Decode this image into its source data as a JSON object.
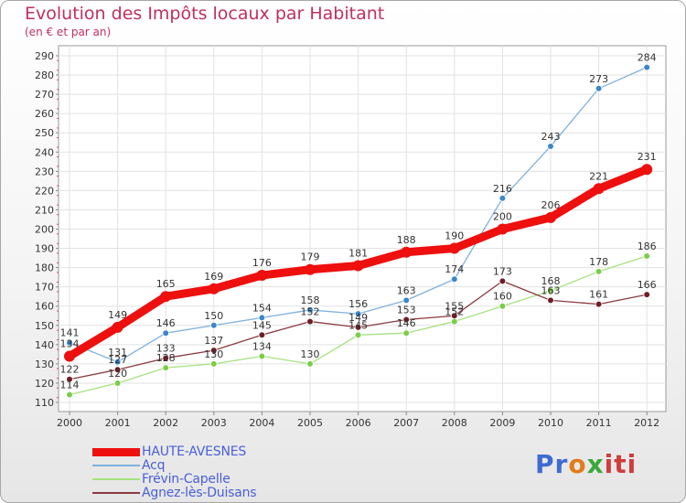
{
  "title": "Evolution des Impôts locaux par Habitant",
  "subtitle": "(en € et par an)",
  "logo_text": [
    "Pr",
    "o",
    "x",
    "iti"
  ],
  "chart_data": {
    "type": "line",
    "title": "Evolution des Impôts locaux par Habitant",
    "subtitle": "(en € et par an)",
    "xlabel": "",
    "ylabel": "",
    "x": [
      "2000",
      "2001",
      "2002",
      "2003",
      "2004",
      "2005",
      "2006",
      "2007",
      "2008",
      "2009",
      "2010",
      "2011",
      "2012"
    ],
    "ylim": [
      110,
      290
    ],
    "yticks": [
      110,
      120,
      130,
      140,
      150,
      160,
      170,
      180,
      190,
      200,
      210,
      220,
      230,
      240,
      250,
      260,
      270,
      280,
      290
    ],
    "ytick_labels": [
      "110",
      "120",
      "130",
      "140",
      "150",
      "160",
      "170",
      "180",
      "190",
      "200",
      "210",
      "220",
      "230",
      "240",
      "250",
      "260",
      "270",
      "280",
      "290"
    ],
    "grid": true,
    "legend_position": "bottom-left",
    "series": [
      {
        "name": "HAUTE-AVESNES",
        "color": "#ee0f0f",
        "marker_color": "#ee0f0f",
        "values": [
          134,
          149,
          165,
          169,
          176,
          179,
          181,
          188,
          190,
          200,
          206,
          221,
          231
        ],
        "labels": [
          "134",
          "149",
          "165",
          "169",
          "176",
          "179",
          "181",
          "188",
          "190",
          "200",
          "206",
          "221",
          "231"
        ]
      },
      {
        "name": "Acq",
        "color": "#7fb1de",
        "marker_color": "#3c86c8",
        "values": [
          141,
          131,
          146,
          150,
          154,
          158,
          156,
          163,
          174,
          216,
          243,
          273,
          284
        ],
        "labels": [
          "141",
          "131",
          "146",
          "150",
          "154",
          "158",
          "156",
          "163",
          "174",
          "216",
          "243",
          "273",
          "284"
        ]
      },
      {
        "name": "Frévin-Capelle",
        "color": "#a6e27f",
        "marker_color": "#7ccc4a",
        "values": [
          114,
          120,
          128,
          130,
          134,
          130,
          145,
          146,
          152,
          160,
          168,
          178,
          186
        ],
        "labels": [
          "114",
          "120",
          "128",
          "130",
          "134",
          "130",
          "145",
          "146",
          "152",
          "160",
          "168",
          "178",
          "186"
        ]
      },
      {
        "name": "Agnez-lès-Duisans",
        "color": "#8a3a40",
        "marker_color": "#6f1d25",
        "values": [
          122,
          127,
          133,
          137,
          145,
          152,
          149,
          153,
          155,
          173,
          163,
          161,
          166
        ],
        "labels": [
          "122",
          "127",
          "133",
          "137",
          "145",
          "152",
          "149",
          "153",
          "155",
          "173",
          "163",
          "161",
          "166"
        ]
      }
    ]
  }
}
